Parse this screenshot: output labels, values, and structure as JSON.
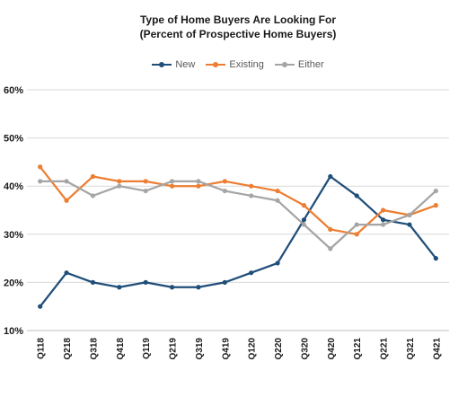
{
  "chart_data": {
    "type": "line",
    "title": "Type of Home Buyers Are Looking For",
    "subtitle": "(Percent of Prospective Home Buyers)",
    "categories": [
      "Q118",
      "Q218",
      "Q318",
      "Q418",
      "Q119",
      "Q219",
      "Q319",
      "Q419",
      "Q120",
      "Q220",
      "Q320",
      "Q420",
      "Q121",
      "Q221",
      "Q321",
      "Q421"
    ],
    "ylim": [
      10,
      50
    ],
    "yticks": [
      "10%",
      "20%",
      "30%",
      "40%",
      "50%",
      "60%"
    ],
    "ytick_values": [
      10,
      20,
      30,
      40,
      50,
      60
    ],
    "grid": true,
    "legend_position": "top",
    "series": [
      {
        "name": "New",
        "color": "#1f4e79",
        "values": [
          15,
          22,
          20,
          19,
          20,
          19,
          19,
          20,
          22,
          24,
          33,
          42,
          38,
          33,
          32,
          25
        ]
      },
      {
        "name": "Existing",
        "color": "#ed7d31",
        "values": [
          44,
          37,
          42,
          41,
          41,
          40,
          40,
          41,
          40,
          39,
          36,
          31,
          30,
          35,
          34,
          36
        ]
      },
      {
        "name": "Either",
        "color": "#a5a5a5",
        "values": [
          41,
          41,
          38,
          40,
          39,
          41,
          41,
          39,
          38,
          37,
          32,
          27,
          32,
          32,
          34,
          39
        ]
      }
    ]
  }
}
